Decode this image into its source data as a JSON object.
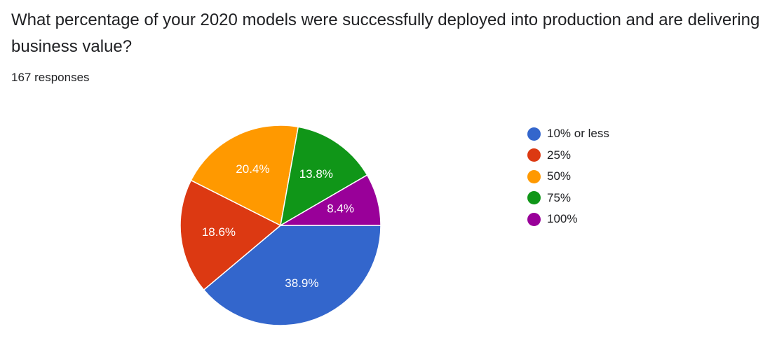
{
  "question": {
    "title": "What percentage of your 2020 models were successfully deployed into production and are delivering business value?",
    "responses": "167 responses"
  },
  "chart_data": {
    "type": "pie",
    "title": "What percentage of your 2020 models were successfully deployed into production and are delivering business value?",
    "legend_position": "right",
    "start_angle_deg": 0,
    "direction": "clockwise",
    "slices": [
      {
        "label": "10% or less",
        "value": 38.9,
        "display": "38.9%",
        "color": "#3366cc"
      },
      {
        "label": "25%",
        "value": 18.6,
        "display": "18.6%",
        "color": "#dc3912"
      },
      {
        "label": "50%",
        "value": 20.4,
        "display": "20.4%",
        "color": "#ff9900"
      },
      {
        "label": "75%",
        "value": 13.8,
        "display": "13.8%",
        "color": "#109618"
      },
      {
        "label": "100%",
        "value": 8.4,
        "display": "8.4%",
        "color": "#990099"
      }
    ]
  }
}
